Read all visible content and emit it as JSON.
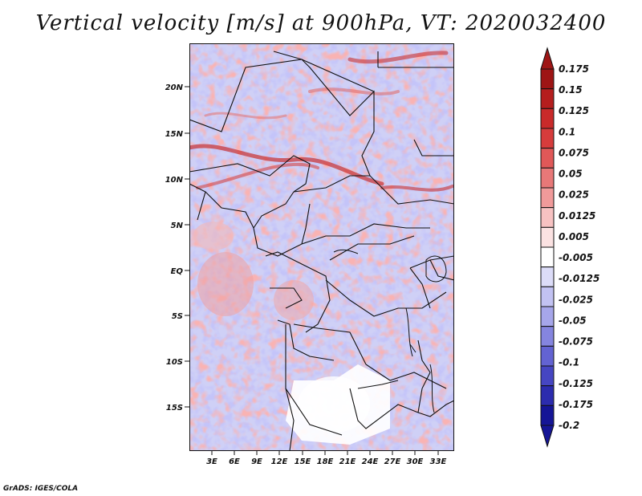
{
  "title": "Vertical velocity [m/s] at 900hPa, VT: 2020032400",
  "credit": "GrADS: IGES/COLA",
  "map": {
    "lon_ticks": [
      "3E",
      "6E",
      "9E",
      "12E",
      "15E",
      "18E",
      "21E",
      "24E",
      "27E",
      "30E",
      "33E"
    ],
    "lat_ticks": [
      "20N",
      "15N",
      "10N",
      "5N",
      "EQ",
      "5S",
      "10S",
      "15S"
    ]
  },
  "colorbar": {
    "levels": [
      "0.175",
      "0.15",
      "0.125",
      "0.1",
      "0.075",
      "0.05",
      "0.025",
      "0.0125",
      "0.005",
      "-0.005",
      "-0.0125",
      "-0.025",
      "-0.05",
      "-0.075",
      "-0.1",
      "-0.125",
      "-0.175",
      "-0.2"
    ],
    "colors": [
      "#9e1515",
      "#b51e1e",
      "#c92a2a",
      "#d63c3c",
      "#e05858",
      "#e87878",
      "#f09a9a",
      "#f7c2c2",
      "#fbe2e2",
      "#ffffff",
      "#dcdcf8",
      "#c2c2f2",
      "#a6a6ea",
      "#8585df",
      "#6363d2",
      "#4646c2",
      "#2c2cae",
      "#151596"
    ]
  }
}
